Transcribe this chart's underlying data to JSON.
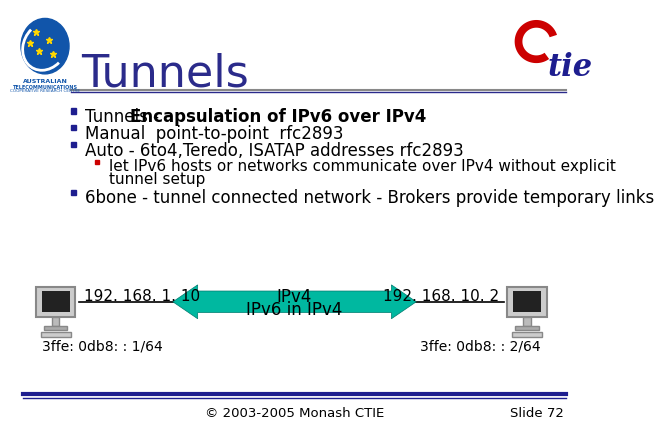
{
  "title": "Tunnels",
  "title_color": "#2B2B8B",
  "title_fontsize": 32,
  "bg_color": "#FFFFFF",
  "bullet_square_color": "#1E1E8F",
  "sub_bullet_color": "#CC0000",
  "line_color": "#2B2B8B",
  "bullet1_normal": "Tunnels - ",
  "bullet1_bold": "Encapsulation of IPv6 over IPv4",
  "bullet2": "Manual  point-to-point  rfc2893",
  "bullet3": "Auto - 6to4,Teredo, ISATAP addresses rfc2893",
  "sub_bullet1a": "let IPv6 hosts or networks communicate over IPv4 without explicit",
  "sub_bullet1b": "tunnel setup",
  "bullet4": "6bone - tunnel connected network - Brokers provide temporary links",
  "left_ip": "192. 168. 1. 10",
  "left_ipv6": "3ffe: 0db8: : 1/64",
  "right_ip": "192. 168. 10. 2",
  "right_ipv6": "3ffe: 0db8: : 2/64",
  "arrow_top_label": "IPv4",
  "arrow_bottom_label": "IPv6 in IPv4",
  "arrow_color": "#00B8A0",
  "footer": "© 2003-2005 Monash CTIE",
  "slide_num": "Slide 72",
  "text_color": "#000000",
  "font_size_body": 12,
  "font_size_small": 10,
  "footer_line_color": "#1E1E8F",
  "bullet_indent": 75,
  "sub_bullet_indent": 105,
  "text_indent": 90,
  "sub_text_indent": 120
}
